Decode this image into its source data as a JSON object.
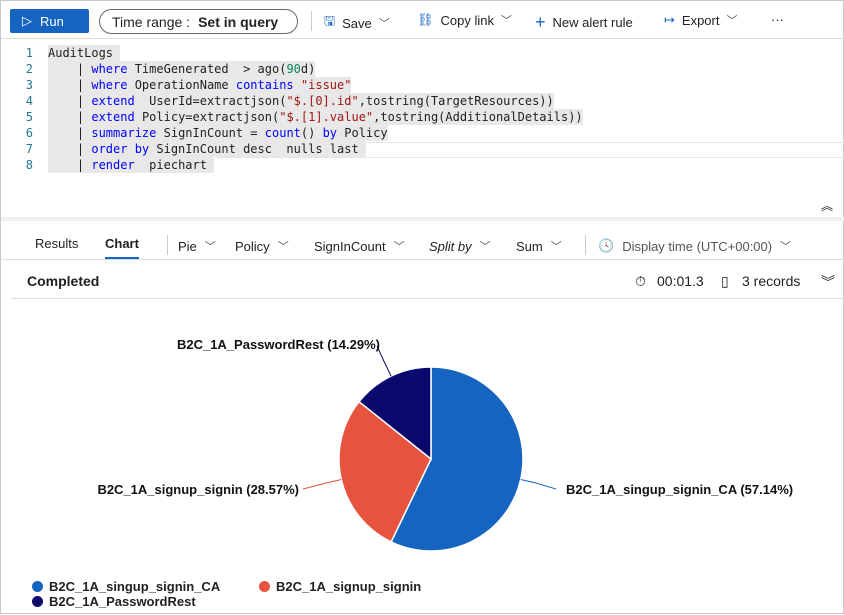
{
  "toolbar": {
    "run": "Run",
    "time_range_label": "Time range :",
    "time_range_value": "Set in query",
    "save": "Save",
    "copy_link": "Copy link",
    "new_alert_rule": "New alert rule",
    "export": "Export",
    "more": "···"
  },
  "editor": {
    "line_numbers": [
      "1",
      "2",
      "3",
      "4",
      "5",
      "6",
      "7",
      "8"
    ]
  },
  "results_tabs": {
    "results": "Results",
    "chart": "Chart",
    "chart_type": "Pie",
    "x_column": "Policy",
    "y_column": "SignInCount",
    "split_by": "Split by",
    "aggregation": "Sum",
    "display_time": "Display time (UTC+00:00)"
  },
  "status": {
    "text": "Completed",
    "duration": "00:01.3",
    "records": "3 records"
  },
  "chart_data": {
    "type": "pie",
    "categories": [
      "B2C_1A_singup_signin_CA",
      "B2C_1A_signup_signin",
      "B2C_1A_PasswordRest"
    ],
    "values": [
      57.14,
      28.57,
      14.29
    ],
    "data_labels": [
      "B2C_1A_singup_signin_CA (57.14%)",
      "B2C_1A_signup_signin (28.57%)",
      "B2C_1A_PasswordRest (14.29%)"
    ],
    "colors": [
      "#1565c0",
      "#e8533f",
      "#0a0a6e"
    ],
    "legend": "bottom-left"
  }
}
